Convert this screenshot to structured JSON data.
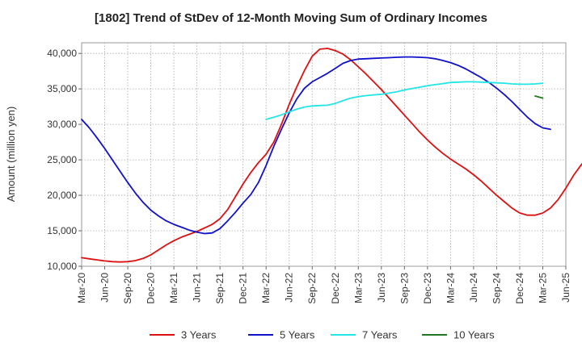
{
  "chart_data": {
    "type": "line",
    "title": "[1802]  Trend of StDev of 12-Month Moving Sum of Ordinary Incomes",
    "ylabel": "Amount (million yen)",
    "xlabel": "",
    "ylim": [
      10000,
      41500
    ],
    "y_ticks": [
      10000,
      15000,
      20000,
      25000,
      30000,
      35000,
      40000
    ],
    "y_tick_labels": [
      "10,000",
      "15,000",
      "20,000",
      "25,000",
      "30,000",
      "35,000",
      "40,000"
    ],
    "x_start": "2020-03",
    "x_end": "2025-06",
    "x_tick_labels": [
      "Mar-20",
      "Jun-20",
      "Sep-20",
      "Dec-20",
      "Mar-21",
      "Jun-21",
      "Sep-21",
      "Dec-21",
      "Mar-22",
      "Jun-22",
      "Sep-22",
      "Dec-22",
      "Mar-23",
      "Jun-23",
      "Sep-23",
      "Dec-23",
      "Mar-24",
      "Jun-24",
      "Sep-24",
      "Dec-24",
      "Mar-25",
      "Jun-25"
    ],
    "grid": true,
    "legend_position": "bottom",
    "series": [
      {
        "name": "3 Years",
        "color": "#dd1111",
        "start": "2020-03",
        "values": [
          11200,
          11050,
          10900,
          10750,
          10650,
          10600,
          10650,
          10800,
          11100,
          11600,
          12300,
          13000,
          13600,
          14100,
          14500,
          14900,
          15400,
          15900,
          16700,
          18000,
          19800,
          21600,
          23200,
          24600,
          25800,
          27500,
          30000,
          32800,
          35300,
          37600,
          39600,
          40600,
          40700,
          40400,
          39900,
          39100,
          38100,
          37100,
          36000,
          34900,
          33700,
          32500,
          31300,
          30100,
          28900,
          27800,
          26800,
          25900,
          25100,
          24400,
          23700,
          22900,
          22000,
          21000,
          20000,
          19100,
          18200,
          17500,
          17200,
          17200,
          17500,
          18200,
          19400,
          21000,
          22800,
          24300,
          25500
        ]
      },
      {
        "name": "5 Years",
        "color": "#1111cc",
        "start": "2020-03",
        "values": [
          30700,
          29500,
          28100,
          26600,
          25000,
          23400,
          21800,
          20300,
          19000,
          17900,
          17100,
          16400,
          15900,
          15500,
          15100,
          14800,
          14600,
          14700,
          15300,
          16400,
          17600,
          18900,
          20100,
          21800,
          24200,
          26900,
          29300,
          31600,
          33600,
          35100,
          36000,
          36600,
          37200,
          37900,
          38600,
          39000,
          39200,
          39250,
          39300,
          39350,
          39400,
          39450,
          39500,
          39500,
          39450,
          39400,
          39250,
          39000,
          38700,
          38300,
          37800,
          37200,
          36600,
          35900,
          35100,
          34200,
          33200,
          32100,
          31000,
          30100,
          29500,
          29300
        ]
      },
      {
        "name": "7 Years",
        "color": "#22e6e6",
        "start": "2022-03",
        "values": [
          30700,
          31000,
          31350,
          31750,
          32150,
          32450,
          32600,
          32650,
          32700,
          32950,
          33350,
          33700,
          33900,
          34050,
          34150,
          34250,
          34400,
          34600,
          34850,
          35050,
          35250,
          35450,
          35600,
          35750,
          35900,
          35950,
          36000,
          36000,
          35950,
          35900,
          35850,
          35800,
          35700,
          35650,
          35650,
          35700,
          35800
        ]
      },
      {
        "name": "10 Years",
        "color": "#227722",
        "start": "2025-02",
        "values": [
          34000,
          33700
        ]
      }
    ]
  }
}
